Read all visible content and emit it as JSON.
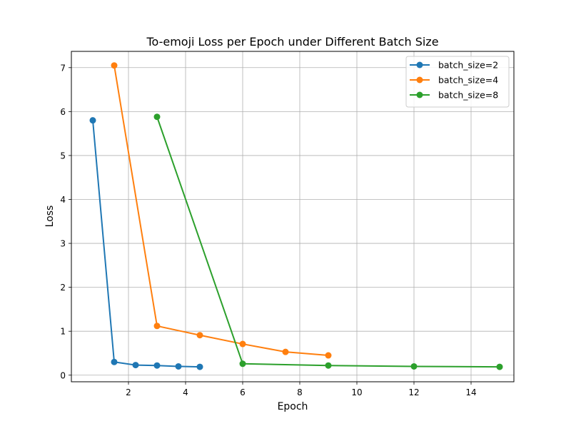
{
  "chart_data": {
    "type": "line",
    "title": "To-emoji Loss per Epoch under Different Batch Size",
    "xlabel": "Epoch",
    "ylabel": "Loss",
    "xlim": [
      0,
      15.5
    ],
    "ylim": [
      -0.15,
      7.37
    ],
    "xticks": [
      2,
      4,
      6,
      8,
      10,
      12,
      14
    ],
    "yticks": [
      0,
      1,
      2,
      3,
      4,
      5,
      6,
      7
    ],
    "grid": true,
    "legend_position": "top-right",
    "series": [
      {
        "name": "batch_size=2",
        "color": "#1f77b4",
        "x": [
          0.75,
          1.5,
          2.25,
          3.0,
          3.75,
          4.5
        ],
        "y": [
          5.8,
          0.3,
          0.23,
          0.22,
          0.2,
          0.19
        ]
      },
      {
        "name": "batch_size=4",
        "color": "#ff7f0e",
        "x": [
          1.5,
          3.0,
          4.5,
          6.0,
          7.5,
          9.0
        ],
        "y": [
          7.05,
          1.12,
          0.91,
          0.71,
          0.53,
          0.45
        ]
      },
      {
        "name": "batch_size=8",
        "color": "#2ca02c",
        "x": [
          3.0,
          6.0,
          9.0,
          12.0,
          15.0
        ],
        "y": [
          5.88,
          0.26,
          0.22,
          0.2,
          0.19
        ]
      }
    ]
  }
}
